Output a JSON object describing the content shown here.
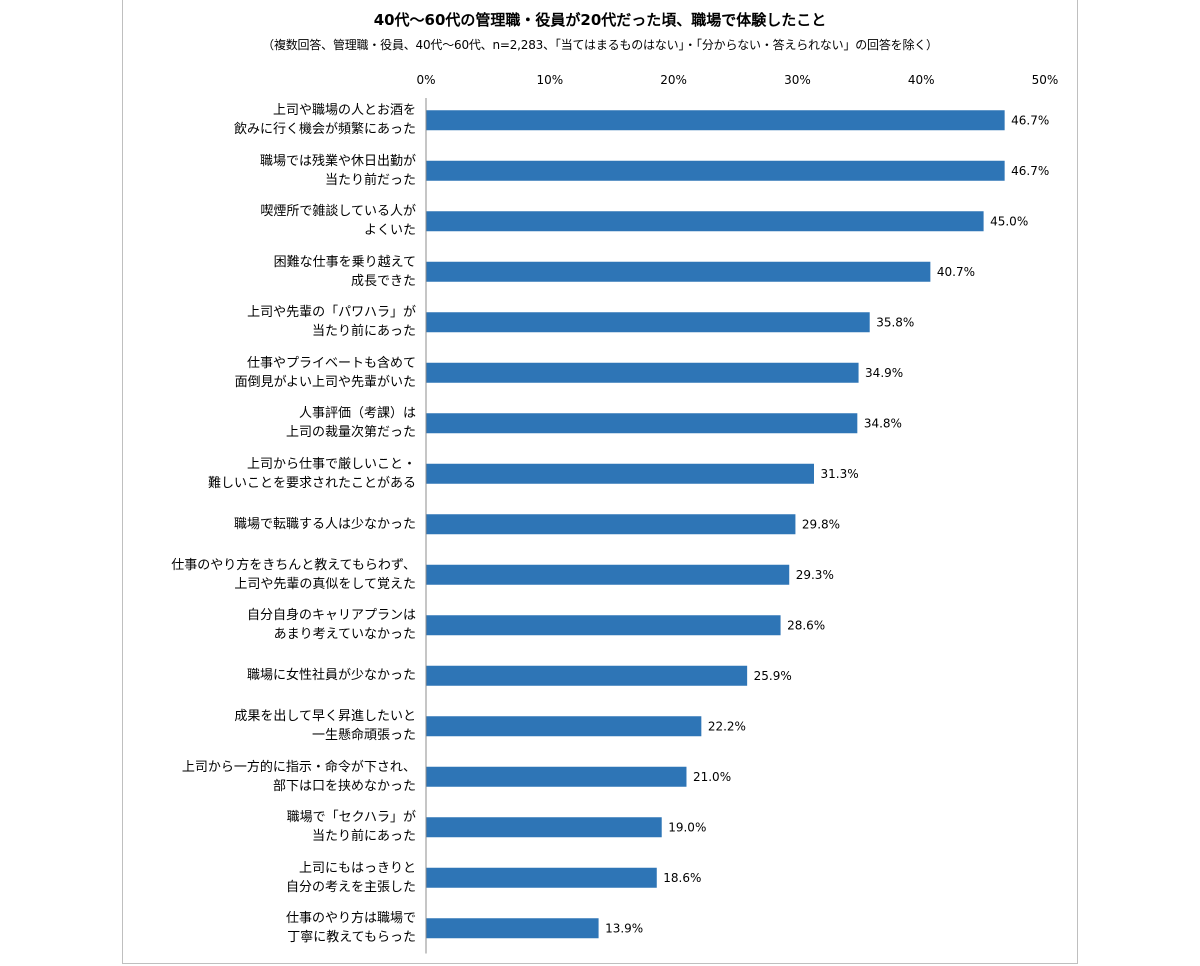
{
  "chart_data": {
    "type": "bar",
    "orientation": "horizontal",
    "title": "40代～60代の管理職・役員が20代だった頃、職場で体験したこと",
    "subtitle": "（複数回答、管理職・役員、40代～60代、n=2,283、「当てはまるものはない」・「分からない・答えられない」の回答を除く）",
    "xlim": [
      0,
      50
    ],
    "x_ticks": [
      "0%",
      "10%",
      "20%",
      "30%",
      "40%",
      "50%"
    ],
    "x_tick_values": [
      0,
      10,
      20,
      30,
      40,
      50
    ],
    "axis_position": "top",
    "grid": false,
    "bar_color": "#2e75b6",
    "categories": [
      [
        "上司や職場の人とお酒を",
        "飲みに行く機会が頻繁にあった"
      ],
      [
        "職場では残業や休日出勤が",
        "当たり前だった"
      ],
      [
        "喫煙所で雑談している人が",
        "よくいた"
      ],
      [
        "困難な仕事を乗り越えて",
        "成長できた"
      ],
      [
        "上司や先輩の「パワハラ」が",
        "当たり前にあった"
      ],
      [
        "仕事やプライベートも含めて",
        "面倒見がよい上司や先輩がいた"
      ],
      [
        "人事評価（考課）は",
        "上司の裁量次第だった"
      ],
      [
        "上司から仕事で厳しいこと・",
        "難しいことを要求されたことがある"
      ],
      [
        "職場で転職する人は少なかった"
      ],
      [
        "仕事のやり方をきちんと教えてもらわず、",
        "上司や先輩の真似をして覚えた"
      ],
      [
        "自分自身のキャリアプランは",
        "あまり考えていなかった"
      ],
      [
        "職場に女性社員が少なかった"
      ],
      [
        "成果を出して早く昇進したいと",
        "一生懸命頑張った"
      ],
      [
        "上司から一方的に指示・命令が下され、",
        "部下は口を挟めなかった"
      ],
      [
        "職場で「セクハラ」が",
        "当たり前にあった"
      ],
      [
        "上司にもはっきりと",
        "自分の考えを主張した"
      ],
      [
        "仕事のやり方は職場で",
        "丁寧に教えてもらった"
      ]
    ],
    "values": [
      46.7,
      46.7,
      45.0,
      40.7,
      35.8,
      34.9,
      34.8,
      31.3,
      29.8,
      29.3,
      28.6,
      25.9,
      22.2,
      21.0,
      19.0,
      18.6,
      13.9
    ],
    "data_labels": [
      "46.7%",
      "46.7%",
      "45.0%",
      "40.7%",
      "35.8%",
      "34.9%",
      "34.8%",
      "31.3%",
      "29.8%",
      "29.3%",
      "28.6%",
      "25.9%",
      "22.2%",
      "21.0%",
      "19.0%",
      "18.6%",
      "13.9%"
    ]
  }
}
